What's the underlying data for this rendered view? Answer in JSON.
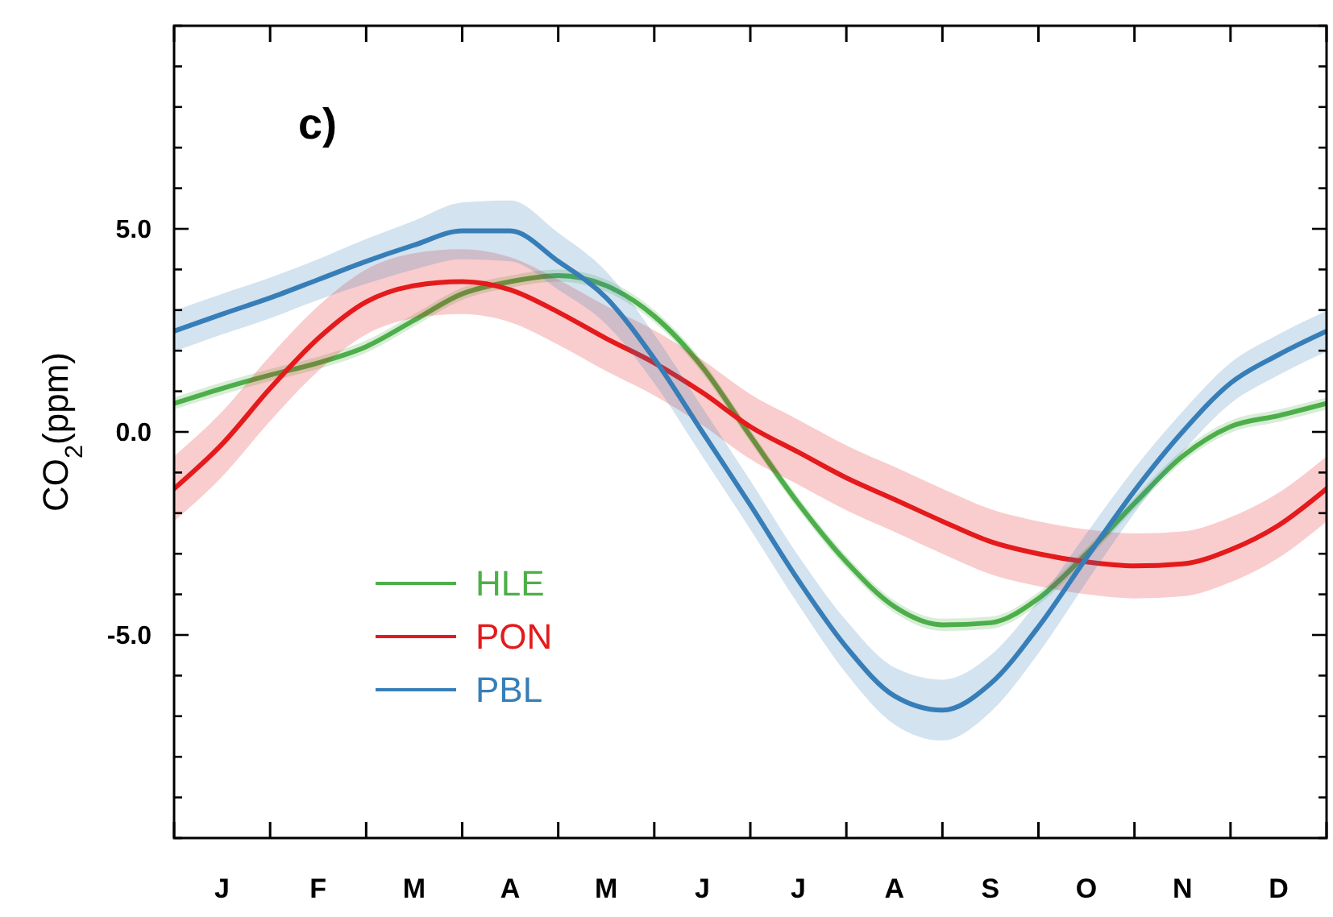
{
  "chart_data": {
    "type": "line",
    "ylabel": "CO$_{2}$(ppm)",
    "annotations": [
      "c)"
    ],
    "categories": [
      null,
      "J",
      null,
      "F",
      null,
      "M",
      null,
      "A",
      null,
      "M",
      null,
      "J",
      null,
      "J",
      null,
      "A",
      null,
      "S",
      null,
      "O",
      null,
      "N",
      null,
      "D",
      null
    ],
    "ylim": [
      -10,
      10
    ],
    "yticks": [
      {
        "value": -10,
        "label": null
      },
      {
        "value": -9,
        "label": null
      },
      {
        "value": -8,
        "label": null
      },
      {
        "value": -7,
        "label": null
      },
      {
        "value": -6,
        "label": null
      },
      {
        "value": -5,
        "label": "-5.0"
      },
      {
        "value": -4,
        "label": null
      },
      {
        "value": -3,
        "label": null
      },
      {
        "value": -2,
        "label": null
      },
      {
        "value": -1,
        "label": null
      },
      {
        "value": 0,
        "label": "0.0"
      },
      {
        "value": 1,
        "label": null
      },
      {
        "value": 2,
        "label": null
      },
      {
        "value": 3,
        "label": null
      },
      {
        "value": 4,
        "label": null
      },
      {
        "value": 5,
        "label": "5.0"
      },
      {
        "value": 6,
        "label": null
      },
      {
        "value": 7,
        "label": null
      },
      {
        "value": 8,
        "label": null
      },
      {
        "value": 9,
        "label": null
      },
      {
        "value": 10,
        "label": null
      }
    ],
    "grid": false,
    "legend": "bottom left",
    "marker": "none",
    "line_style": "solid",
    "series": [
      {
        "name": "HLE",
        "color": "#4daf4a",
        "values": [
          0.7,
          1.07,
          1.4,
          1.7,
          2.1,
          2.75,
          3.4,
          3.7,
          3.85,
          3.6,
          2.85,
          1.6,
          -0.1,
          -1.76,
          -3.2,
          -4.3,
          -4.75,
          -4.7,
          -4.1,
          -3.0,
          -1.76,
          -0.6,
          0.13,
          0.4,
          0.7
        ],
        "lower": [
          0.55,
          0.92,
          1.25,
          1.55,
          1.95,
          2.6,
          3.25,
          3.55,
          3.7,
          3.45,
          2.7,
          1.45,
          -0.25,
          -1.91,
          -3.35,
          -4.45,
          -4.9,
          -4.85,
          -4.25,
          -3.15,
          -1.91,
          -0.75,
          -0.02,
          0.25,
          0.55
        ],
        "upper": [
          0.85,
          1.22,
          1.55,
          1.85,
          2.25,
          2.9,
          3.55,
          3.85,
          4.0,
          3.75,
          3.0,
          1.75,
          0.05,
          -1.61,
          -3.05,
          -4.15,
          -4.6,
          -4.55,
          -3.95,
          -2.85,
          -1.61,
          -0.45,
          0.28,
          0.55,
          0.85
        ]
      },
      {
        "name": "PON",
        "color": "#e41a1c",
        "values": [
          -1.4,
          -0.3,
          1.07,
          2.3,
          3.2,
          3.6,
          3.7,
          3.5,
          2.95,
          2.3,
          1.7,
          0.97,
          0.13,
          -0.5,
          -1.13,
          -1.66,
          -2.2,
          -2.7,
          -3.0,
          -3.2,
          -3.3,
          -3.25,
          -2.9,
          -2.3,
          -1.4
        ],
        "lower": [
          -2.2,
          -1.1,
          0.27,
          1.5,
          2.4,
          2.8,
          2.9,
          2.7,
          2.15,
          1.5,
          0.9,
          0.17,
          -0.67,
          -1.3,
          -1.93,
          -2.46,
          -3.0,
          -3.5,
          -3.8,
          -4.0,
          -4.1,
          -4.05,
          -3.7,
          -3.1,
          -2.2
        ],
        "upper": [
          -0.6,
          0.5,
          1.87,
          3.1,
          4.0,
          4.4,
          4.5,
          4.3,
          3.75,
          3.1,
          2.5,
          1.77,
          0.93,
          0.3,
          -0.33,
          -0.86,
          -1.4,
          -1.9,
          -2.2,
          -2.4,
          -2.5,
          -2.45,
          -2.1,
          -1.5,
          -0.6
        ]
      },
      {
        "name": "PBL",
        "color": "#377eb8",
        "values": [
          2.48,
          2.9,
          3.3,
          3.75,
          4.2,
          4.6,
          4.95,
          4.95,
          4.2,
          3.3,
          1.8,
          0,
          -1.8,
          -3.65,
          -5.3,
          -6.5,
          -6.85,
          -6.2,
          -4.8,
          -3.1,
          -1.45,
          0,
          1.2,
          1.9,
          2.48
        ],
        "lower": [
          1.98,
          2.4,
          2.8,
          3.25,
          3.65,
          4.0,
          4.25,
          4.2,
          3.5,
          2.65,
          1.2,
          -0.6,
          -2.4,
          -4.25,
          -5.95,
          -7.2,
          -7.6,
          -6.9,
          -5.45,
          -3.7,
          -2.0,
          -0.5,
          0.7,
          1.4,
          1.98
        ],
        "upper": [
          2.98,
          3.4,
          3.8,
          4.25,
          4.75,
          5.2,
          5.65,
          5.7,
          4.9,
          3.95,
          2.4,
          0.6,
          -1.2,
          -3.05,
          -4.65,
          -5.8,
          -6.1,
          -5.5,
          -4.15,
          -2.5,
          -0.9,
          0.5,
          1.7,
          2.4,
          2.98
        ]
      }
    ]
  }
}
